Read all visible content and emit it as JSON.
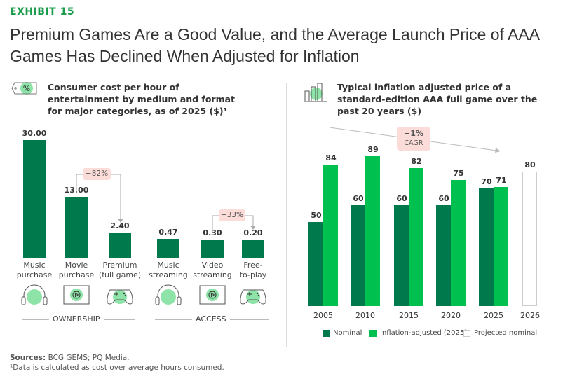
{
  "exhibit": "EXHIBIT 15",
  "title": "Premium Games Are a Good Value, and the Average Launch Price of AAA Games Has Declined When Adjusted for Inflation",
  "chart_data": [
    {
      "type": "bar",
      "title": "Consumer cost per hour of entertainment by medium and format for major categories, as of 2025 ($)¹",
      "categories": [
        "Music purchase",
        "Movie purchase",
        "Premium (full game)",
        "Music streaming",
        "Video streaming",
        "Free-to-play"
      ],
      "values": [
        30.0,
        13.0,
        2.4,
        0.47,
        0.3,
        0.2
      ],
      "labels": [
        "30.00",
        "13.00",
        "2.40",
        "0.47",
        "0.30",
        "0.20"
      ],
      "groups": [
        {
          "name": "OWNERSHIP"
        },
        {
          "name": "ACCESS"
        }
      ],
      "annotations": [
        "−82%",
        "−33%"
      ]
    },
    {
      "type": "bar",
      "title": "Typical inflation adjusted price of a standard-edition AAA full game over the past 20 years ($)",
      "categories": [
        "2005",
        "2010",
        "2015",
        "2020",
        "2025",
        "2026"
      ],
      "series": [
        {
          "name": "Nominal",
          "values": [
            50,
            60,
            60,
            60,
            70,
            null
          ]
        },
        {
          "name": "Inflation-adjusted (2025)",
          "values": [
            84,
            89,
            82,
            75,
            71,
            null
          ]
        },
        {
          "name": "Projected nominal",
          "values": [
            null,
            null,
            null,
            null,
            null,
            80
          ]
        }
      ],
      "annotation": {
        "value": "−1%",
        "label": "CAGR"
      }
    }
  ],
  "colors": {
    "nominal": "#007a4d",
    "inflation": "#00c150",
    "accent": "#1a9c4a"
  },
  "footer": {
    "sources_label": "Sources:",
    "sources": " BCG GEMS; PQ Media.",
    "note": "¹Data is calculated as cost over average hours consumed."
  }
}
